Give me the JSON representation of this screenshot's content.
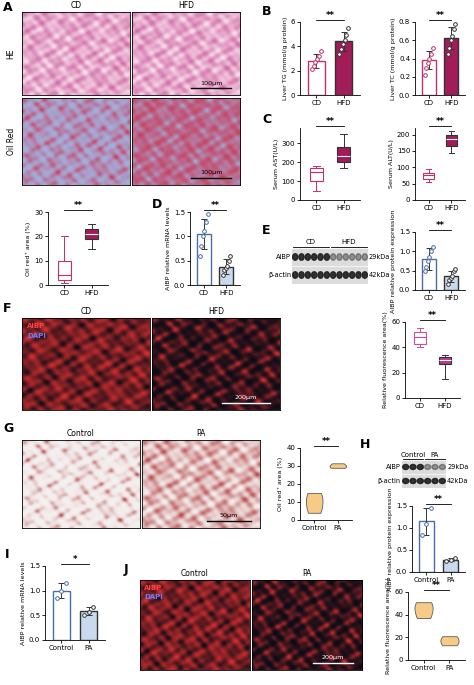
{
  "chart_data": [
    {
      "type": "box",
      "categories": [
        "CD",
        "HFD"
      ],
      "stats": [
        {
          "whislo": 1,
          "q1": 2,
          "med": 4,
          "q3": 10,
          "whishi": 20
        },
        {
          "whislo": 15,
          "q1": 19,
          "med": 21,
          "q3": 23,
          "whishi": 25
        }
      ],
      "colors": [
        "#c2306a",
        "#a11c59"
      ],
      "ylabel": "Oil red⁺ area (%)",
      "ylim": [
        0,
        30
      ],
      "yticks": [
        0,
        10,
        20,
        30
      ],
      "annotations": [
        "**"
      ]
    },
    {
      "panel": "B",
      "type": "bar",
      "categories": [
        "CD",
        "HFD"
      ],
      "values": [
        2.8,
        4.4
      ],
      "error": [
        0.6,
        0.8
      ],
      "points": [
        [
          2.1,
          2.4,
          2.7,
          3.0,
          3.2,
          3.6
        ],
        [
          3.4,
          3.8,
          4.2,
          4.5,
          4.9,
          5.5
        ]
      ],
      "colors": [
        "#c2306a",
        "#a11c59"
      ],
      "ylabel": "Liver TG (mmol/g protein)",
      "ylim": [
        0,
        6
      ],
      "yticks": [
        0,
        2,
        4,
        6
      ],
      "annotations": [
        "**"
      ]
    },
    {
      "type": "bar",
      "categories": [
        "CD",
        "HFD"
      ],
      "values": [
        0.38,
        0.62
      ],
      "error": [
        0.1,
        0.12
      ],
      "points": [
        [
          0.22,
          0.3,
          0.35,
          0.4,
          0.45,
          0.52
        ],
        [
          0.45,
          0.52,
          0.6,
          0.65,
          0.72,
          0.78
        ]
      ],
      "colors": [
        "#c2306a",
        "#a11c59"
      ],
      "ylabel": "Liver TC (mmol/g protein)",
      "ylim": [
        0,
        0.8
      ],
      "yticks": [
        0.0,
        0.2,
        0.4,
        0.6,
        0.8
      ],
      "annotations": [
        "**"
      ]
    },
    {
      "panel": "C",
      "type": "box",
      "categories": [
        "CD",
        "HFD"
      ],
      "stats": [
        {
          "whislo": 50,
          "q1": 100,
          "med": 150,
          "q3": 170,
          "whishi": 180
        },
        {
          "whislo": 170,
          "q1": 200,
          "med": 230,
          "q3": 280,
          "whishi": 350
        }
      ],
      "colors": [
        "#c2306a",
        "#a11c59"
      ],
      "ylabel": "Serum AST(U/L)",
      "ylim": [
        0,
        380
      ],
      "yticks": [
        0,
        100,
        200,
        300
      ],
      "annotations": [
        "**"
      ]
    },
    {
      "type": "box",
      "categories": [
        "CD",
        "HFD"
      ],
      "stats": [
        {
          "whislo": 55,
          "q1": 65,
          "med": 75,
          "q3": 82,
          "whishi": 95
        },
        {
          "whislo": 145,
          "q1": 165,
          "med": 185,
          "q3": 200,
          "whishi": 210
        }
      ],
      "colors": [
        "#c2306a",
        "#a11c59"
      ],
      "ylabel": "Serum ALT(U/L)",
      "ylim": [
        0,
        220
      ],
      "yticks": [
        0,
        50,
        100,
        150,
        200
      ],
      "annotations": [
        "**"
      ]
    },
    {
      "panel": "D",
      "type": "bar",
      "categories": [
        "CD",
        "HFD"
      ],
      "values": [
        1.05,
        0.38
      ],
      "error": [
        0.3,
        0.15
      ],
      "points": [
        [
          0.6,
          0.8,
          1.0,
          1.1,
          1.3,
          1.45
        ],
        [
          0.2,
          0.3,
          0.35,
          0.4,
          0.5,
          0.6
        ]
      ],
      "colors": [
        "#4a6fa5",
        "#c9d9ee"
      ],
      "ylabel": "AIBP relative mRNA levels",
      "ylim": [
        0,
        1.5
      ],
      "yticks": [
        0.0,
        0.5,
        1.0,
        1.5
      ],
      "annotations": [
        "**"
      ]
    },
    {
      "type": "bar",
      "categories": [
        "CD",
        "HFD"
      ],
      "values": [
        0.8,
        0.35
      ],
      "error": [
        0.28,
        0.15
      ],
      "points": [
        [
          0.5,
          0.6,
          0.75,
          0.85,
          1.0,
          1.1
        ],
        [
          0.15,
          0.25,
          0.3,
          0.35,
          0.5,
          0.55
        ]
      ],
      "colors": [
        "#4a6fa5",
        "#c9d9ee"
      ],
      "ylabel": "AIBP relative protein expression",
      "ylim": [
        0,
        1.5
      ],
      "yticks": [
        0.0,
        0.5,
        1.0,
        1.5
      ],
      "annotations": [
        "**"
      ]
    },
    {
      "type": "box",
      "categories": [
        "CD",
        "HFD"
      ],
      "stats": [
        {
          "whislo": 40,
          "q1": 43,
          "med": 48,
          "q3": 52,
          "whishi": 55
        },
        {
          "whislo": 15,
          "q1": 27,
          "med": 30,
          "q3": 32,
          "whishi": 34
        }
      ],
      "colors": [
        "#c94f96",
        "#b23c86"
      ],
      "ylabel": "Relative fluorescence area(%)",
      "ylim": [
        0,
        60
      ],
      "yticks": [
        0,
        20,
        40,
        60
      ],
      "annotations": [
        "**"
      ]
    },
    {
      "type": "violin",
      "categories": [
        "Control",
        "PA"
      ],
      "points": [
        [
          4,
          10,
          15
        ],
        [
          29,
          30,
          31.5
        ]
      ],
      "colors": [
        "#f7c97e",
        "#f7c97e"
      ],
      "ylabel": "Oil red⁺ area (%)",
      "ylim": [
        0,
        40
      ],
      "yticks": [
        0,
        10,
        20,
        30,
        40
      ],
      "annotations": [
        "**"
      ]
    },
    {
      "type": "bar",
      "categories": [
        "Control",
        "PA"
      ],
      "values": [
        1.15,
        0.28
      ],
      "error": [
        0.3,
        0.04
      ],
      "points": [
        [
          0.85,
          1.1,
          1.45
        ],
        [
          0.25,
          0.27,
          0.32
        ]
      ],
      "colors": [
        "#4a6fa5",
        "#c9d9ee"
      ],
      "ylabel": "AIBP relative protein expression",
      "ylim": [
        0,
        1.5
      ],
      "yticks": [
        0.0,
        0.5,
        1.0,
        1.5
      ],
      "annotations": [
        "**"
      ]
    },
    {
      "panel": "I",
      "type": "bar",
      "categories": [
        "Control",
        "PA"
      ],
      "values": [
        1.0,
        0.58
      ],
      "error": [
        0.15,
        0.08
      ],
      "points": [
        [
          0.85,
          1.0,
          1.15
        ],
        [
          0.5,
          0.56,
          0.66
        ]
      ],
      "colors": [
        "#4a6fa5",
        "#c9d9ee"
      ],
      "ylabel": "AIBP relative mRNA levels",
      "ylim": [
        0,
        1.5
      ],
      "yticks": [
        0.0,
        0.5,
        1.0,
        1.5
      ],
      "annotations": [
        "*"
      ]
    },
    {
      "type": "violin",
      "categories": [
        "Control",
        "PA"
      ],
      "points": [
        [
          37,
          45,
          51
        ],
        [
          13,
          17,
          21
        ]
      ],
      "colors": [
        "#f7c97e",
        "#f7c97e"
      ],
      "ylabel": "Relative fluorescence area(%)",
      "ylim": [
        0,
        60
      ],
      "yticks": [
        0,
        20,
        40,
        60
      ],
      "annotations": [
        "**"
      ]
    }
  ],
  "images": [
    {
      "panel": "A",
      "rows": [
        "HE",
        "Oil Red"
      ],
      "columns": [
        "CD",
        "HFD"
      ],
      "scale_bars": [
        "100μm",
        "100μm"
      ]
    },
    {
      "panel": "F",
      "columns": [
        "CD",
        "HFD"
      ],
      "channels": [
        {
          "name": "AIBP",
          "color": "#ff4040"
        },
        {
          "name": "DAPI",
          "color": "#6080ff"
        }
      ],
      "scale_bars": [
        "200μm"
      ]
    },
    {
      "panel": "G",
      "columns": [
        "Control",
        "PA"
      ],
      "scale_bars": [
        "50μm"
      ]
    },
    {
      "panel": "J",
      "columns": [
        "Control",
        "PA"
      ],
      "channels": [
        {
          "name": "AIBP",
          "color": "#ff4040"
        },
        {
          "name": "DAPI",
          "color": "#6080ff"
        }
      ],
      "scale_bars": [
        "200μm"
      ]
    }
  ],
  "blots": [
    {
      "panel": "E",
      "groups": [
        "CD",
        "HFD"
      ],
      "rows": [
        {
          "name": "AIBP",
          "size": "29kDa"
        },
        {
          "name": "β-actin",
          "size": "42kDa"
        }
      ]
    },
    {
      "panel": "H",
      "groups": [
        "Control",
        "PA"
      ],
      "rows": [
        {
          "name": "AIBP",
          "size": "29kDa"
        },
        {
          "name": "β-actin",
          "size": "42kDa"
        }
      ]
    }
  ]
}
